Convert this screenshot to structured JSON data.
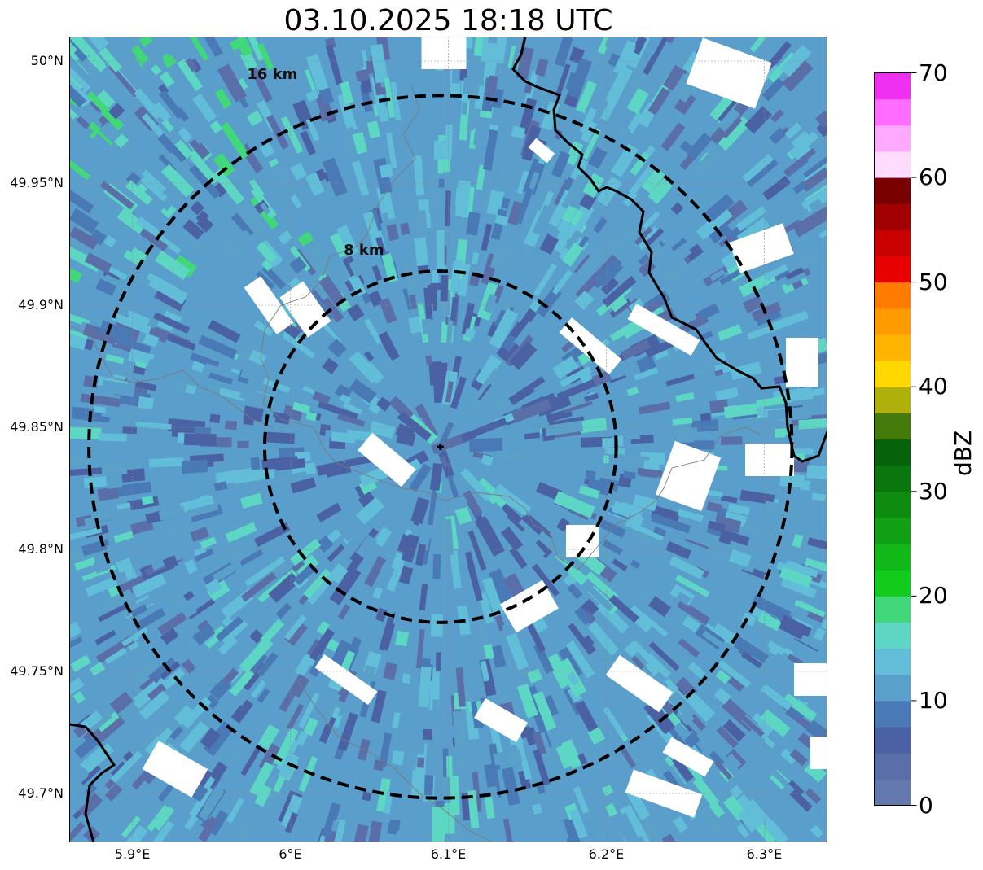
{
  "title": "03.10.2025 18:18 UTC",
  "map": {
    "lon_range": [
      5.86,
      6.34
    ],
    "lat_range": [
      49.68,
      50.01
    ],
    "radar_center": {
      "lon": 6.095,
      "lat": 49.842
    },
    "lat_ticks": [
      {
        "value": 50.0,
        "label": "50°N"
      },
      {
        "value": 49.95,
        "label": "49.95°N"
      },
      {
        "value": 49.9,
        "label": "49.9°N"
      },
      {
        "value": 49.85,
        "label": "49.85°N"
      },
      {
        "value": 49.8,
        "label": "49.8°N"
      },
      {
        "value": 49.75,
        "label": "49.75°N"
      },
      {
        "value": 49.7,
        "label": "49.7°N"
      }
    ],
    "lon_ticks": [
      {
        "value": 5.9,
        "label": "5.9°E"
      },
      {
        "value": 6.0,
        "label": "6°E"
      },
      {
        "value": 6.1,
        "label": "6.1°E"
      },
      {
        "value": 6.2,
        "label": "6.2°E"
      },
      {
        "value": 6.3,
        "label": "6.3°E"
      }
    ],
    "rings": [
      {
        "radius_km": 8,
        "label": "8 km"
      },
      {
        "radius_km": 16,
        "label": "16 km"
      }
    ]
  },
  "colorbar": {
    "label": "dBZ",
    "min": 0,
    "max": 70,
    "ticks": [
      "0",
      "10",
      "20",
      "30",
      "40",
      "50",
      "60",
      "70"
    ],
    "colors": [
      "#6378ad",
      "#5a6ea8",
      "#4a62a3",
      "#4a7ab6",
      "#5aa0c8",
      "#62bdd8",
      "#5ed6c4",
      "#40d878",
      "#12cc1c",
      "#10b818",
      "#10a014",
      "#0e8c10",
      "#0a760e",
      "#06620a",
      "#447a0a",
      "#b0b00a",
      "#ffd800",
      "#ffb400",
      "#ff9a00",
      "#ff7c00",
      "#e60000",
      "#c80000",
      "#a20000",
      "#7a0000",
      "#ffdcff",
      "#ffaaff",
      "#ff6cff",
      "#f030f0"
    ]
  }
}
